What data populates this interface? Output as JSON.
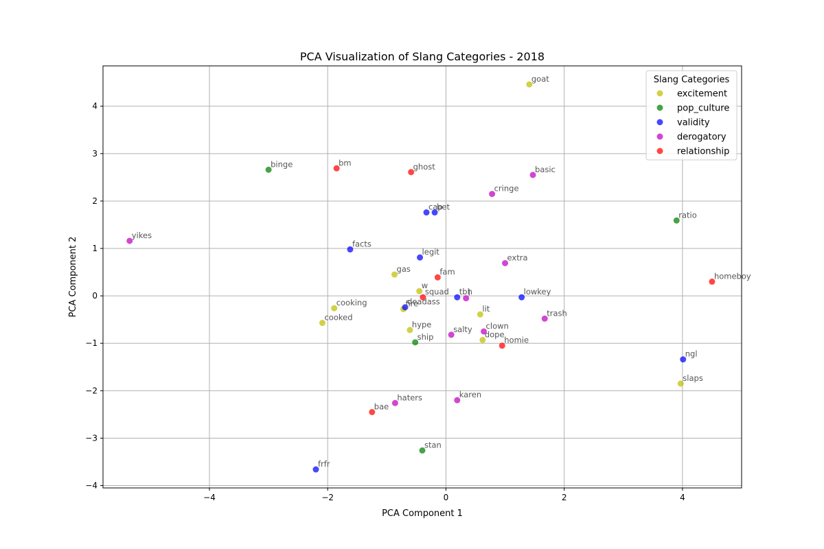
{
  "chart_data": {
    "type": "scatter",
    "title": "PCA Visualization of Slang Categories - 2018",
    "xlabel": "PCA Component 1",
    "ylabel": "PCA Component 2",
    "xlim": [
      -5.8,
      5.0
    ],
    "ylim": [
      -4.05,
      4.85
    ],
    "xticks": [
      -4,
      -2,
      0,
      2,
      4
    ],
    "yticks": [
      -4,
      -3,
      -2,
      -1,
      0,
      1,
      2,
      3,
      4
    ],
    "grid": true,
    "legend": {
      "title": "Slang Categories",
      "position": "top-right"
    },
    "series": [
      {
        "name": "excitement",
        "color": "#bfbf00",
        "points": [
          {
            "label": "goat",
            "x": 1.41,
            "y": 4.46
          },
          {
            "label": "gas",
            "x": -0.87,
            "y": 0.45
          },
          {
            "label": "w",
            "x": -0.45,
            "y": 0.1
          },
          {
            "label": "cooking",
            "x": -1.89,
            "y": -0.26
          },
          {
            "label": "fire",
            "x": -0.72,
            "y": -0.28
          },
          {
            "label": "cooked",
            "x": -2.09,
            "y": -0.57
          },
          {
            "label": "hype",
            "x": -0.61,
            "y": -0.72
          },
          {
            "label": "lit",
            "x": 0.58,
            "y": -0.39
          },
          {
            "label": "dope",
            "x": 0.62,
            "y": -0.93
          },
          {
            "label": "slaps",
            "x": 3.97,
            "y": -1.85
          }
        ]
      },
      {
        "name": "pop_culture",
        "color": "#008000",
        "points": [
          {
            "label": "binge",
            "x": -3.0,
            "y": 2.66
          },
          {
            "label": "ratio",
            "x": 3.9,
            "y": 1.59
          },
          {
            "label": "ship",
            "x": -0.52,
            "y": -0.98
          },
          {
            "label": "stan",
            "x": -0.4,
            "y": -3.26
          }
        ]
      },
      {
        "name": "validity",
        "color": "#0000ff",
        "points": [
          {
            "label": "cap",
            "x": -0.33,
            "y": 1.76
          },
          {
            "label": "bet",
            "x": -0.19,
            "y": 1.76
          },
          {
            "label": "facts",
            "x": -1.62,
            "y": 0.98
          },
          {
            "label": "legit",
            "x": -0.44,
            "y": 0.81
          },
          {
            "label": "tbh",
            "x": 0.19,
            "y": -0.03
          },
          {
            "label": "lowkey",
            "x": 1.28,
            "y": -0.03
          },
          {
            "label": "deadass",
            "x": -0.69,
            "y": -0.24
          },
          {
            "label": "ngl",
            "x": 4.01,
            "y": -1.34
          },
          {
            "label": "frfr",
            "x": -2.2,
            "y": -3.66
          }
        ]
      },
      {
        "name": "derogatory",
        "color": "#bf00bf",
        "points": [
          {
            "label": "basic",
            "x": 1.47,
            "y": 2.55
          },
          {
            "label": "cringe",
            "x": 0.78,
            "y": 2.15
          },
          {
            "label": "yikes",
            "x": -5.35,
            "y": 1.16
          },
          {
            "label": "extra",
            "x": 1.0,
            "y": 0.69
          },
          {
            "label": "l",
            "x": 0.34,
            "y": -0.05
          },
          {
            "label": "trash",
            "x": 1.67,
            "y": -0.48
          },
          {
            "label": "clown",
            "x": 0.64,
            "y": -0.75
          },
          {
            "label": "salty",
            "x": 0.09,
            "y": -0.82
          },
          {
            "label": "haters",
            "x": -0.86,
            "y": -2.26
          },
          {
            "label": "karen",
            "x": 0.19,
            "y": -2.2
          }
        ]
      },
      {
        "name": "relationship",
        "color": "#ff0000",
        "points": [
          {
            "label": "bm",
            "x": -1.85,
            "y": 2.69
          },
          {
            "label": "ghost",
            "x": -0.59,
            "y": 2.61
          },
          {
            "label": "fam",
            "x": -0.14,
            "y": 0.39
          },
          {
            "label": "squad",
            "x": -0.39,
            "y": -0.03
          },
          {
            "label": "homeboy",
            "x": 4.5,
            "y": 0.3
          },
          {
            "label": "homie",
            "x": 0.95,
            "y": -1.05
          },
          {
            "label": "bae",
            "x": -1.25,
            "y": -2.45
          }
        ]
      }
    ]
  }
}
